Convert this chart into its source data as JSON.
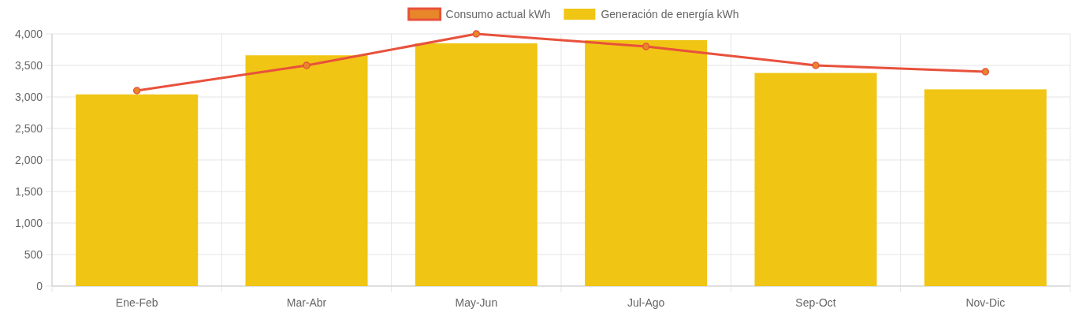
{
  "chart_data": {
    "type": "bar",
    "categories": [
      "Ene-Feb",
      "Mar-Abr",
      "May-Jun",
      "Jul-Ago",
      "Sep-Oct",
      "Nov-Dic"
    ],
    "series": [
      {
        "name": "Consumo actual kWh",
        "type": "line",
        "color": "#e8513c",
        "values": [
          3100,
          3500,
          4000,
          3800,
          3500,
          3400
        ]
      },
      {
        "name": "Generación de energía kWh",
        "color": "#f0c514",
        "values": [
          3040,
          3660,
          3850,
          3900,
          3380,
          3120
        ]
      }
    ],
    "ylim": [
      0,
      4000
    ],
    "yticks": [
      {
        "value": 0,
        "label": "0"
      },
      {
        "value": 500,
        "label": "500"
      },
      {
        "value": 1000,
        "label": "1,000"
      },
      {
        "value": 1500,
        "label": "1,500"
      },
      {
        "value": 2000,
        "label": "2,000"
      },
      {
        "value": 2500,
        "label": "2,500"
      },
      {
        "value": 3000,
        "label": "3,000"
      },
      {
        "value": 3500,
        "label": "3,500"
      },
      {
        "value": 4000,
        "label": "4,000"
      }
    ],
    "grid": true,
    "legend": "top",
    "marker": "circle"
  }
}
